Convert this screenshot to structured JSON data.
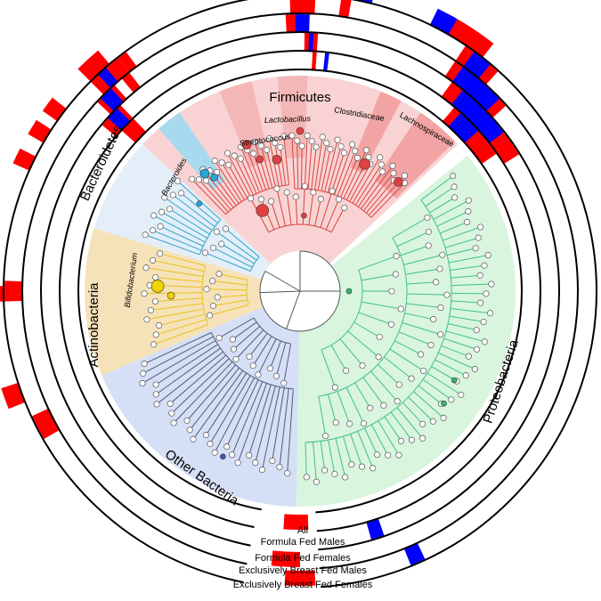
{
  "rings": [
    {
      "label": "All"
    },
    {
      "label": "Formula Fed Males"
    },
    {
      "label": "Formula Fed Females"
    },
    {
      "label": "Exclusively Breast Fed Males"
    },
    {
      "label": "Exclusively Breast Fed Females"
    }
  ],
  "phyla": [
    {
      "name": "Firmicutes",
      "color": "#f9d3d3",
      "edge": "#d8443f",
      "node": "#e04040"
    },
    {
      "name": "Proteobacteria",
      "color": "#d9f5dd",
      "edge": "#3fc08a",
      "node": "#34b36b"
    },
    {
      "name": "Other Bacteria",
      "color": "#d5e0f6",
      "edge": "#4f5b78",
      "node": "#3c5aa8"
    },
    {
      "name": "Actinobacteria",
      "color": "#f6e2b9",
      "edge": "#e8c21a",
      "node": "#f2d400"
    },
    {
      "name": "Bacteroidetes",
      "color": "#e3eef8",
      "edge": "#2ea5c9",
      "node": "#27a7d6"
    }
  ],
  "taxa_labels": [
    {
      "name": "Lactobacillus",
      "italic": true
    },
    {
      "name": "Streptococcus",
      "italic": false
    },
    {
      "name": "Clostridiaceae",
      "italic": false
    },
    {
      "name": "Lachnospiraceae",
      "italic": false
    },
    {
      "name": "Bacteroides",
      "italic": true
    },
    {
      "name": "Bifidobacterium",
      "italic": true
    }
  ],
  "colors": {
    "increase": "#ff0000",
    "decrease": "#0000ff",
    "ring": "#000000"
  }
}
